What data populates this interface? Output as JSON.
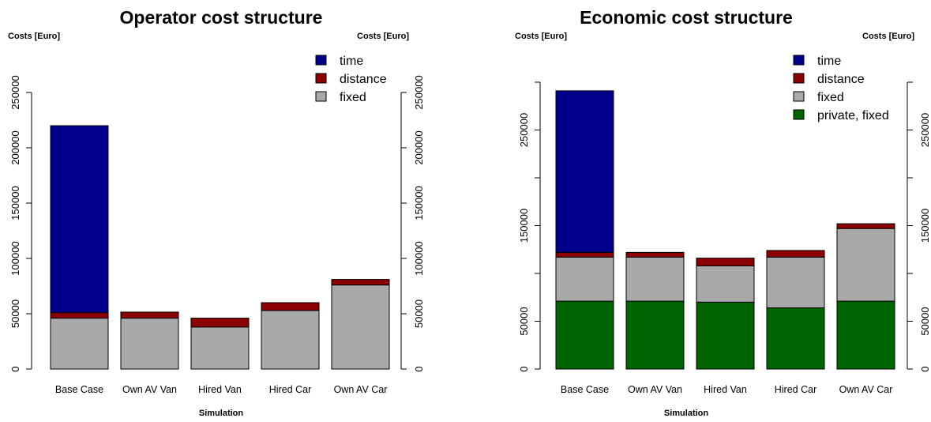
{
  "chart_data": [
    {
      "type": "bar",
      "stacked": true,
      "title": "Operator cost structure",
      "ylabel_left": "Costs [Euro]",
      "ylabel_right": "Costs [Euro]",
      "xlabel": "Simulation",
      "categories": [
        "Base Case",
        "Own AV Van",
        "Hired Van",
        "Hired Car",
        "Own AV Car"
      ],
      "ylim": [
        0,
        250000
      ],
      "yticks": [
        0,
        50000,
        100000,
        150000,
        200000,
        250000
      ],
      "legend_position": "top-right",
      "series": [
        {
          "name": "fixed",
          "color": "#a9a9a9",
          "values": [
            46000,
            46000,
            38000,
            53000,
            76000
          ]
        },
        {
          "name": "distance",
          "color": "#8b0000",
          "values": [
            5000,
            5500,
            8000,
            7000,
            5000
          ]
        },
        {
          "name": "time",
          "color": "#00008b",
          "values": [
            169000,
            0,
            0,
            0,
            0
          ]
        }
      ],
      "legend": [
        {
          "name": "time",
          "color": "#00008b"
        },
        {
          "name": "distance",
          "color": "#8b0000"
        },
        {
          "name": "fixed",
          "color": "#a9a9a9"
        }
      ]
    },
    {
      "type": "bar",
      "stacked": true,
      "title": "Economic cost structure",
      "ylabel_left": "Costs [Euro]",
      "ylabel_right": "Costs [Euro]",
      "xlabel": "Simulation",
      "categories": [
        "Base Case",
        "Own AV Van",
        "Hired Van",
        "Hired Car",
        "Own AV Car"
      ],
      "ylim": [
        0,
        300000
      ],
      "yticks": [
        0,
        50000,
        100000,
        150000,
        200000,
        250000,
        300000
      ],
      "ytick_labels_left": [
        "0",
        "50000",
        "",
        "150000",
        "",
        "250000",
        ""
      ],
      "ytick_labels_right": [
        "0",
        "50000",
        "",
        "150000",
        "",
        "250000",
        ""
      ],
      "legend_position": "top-right",
      "series": [
        {
          "name": "private, fixed",
          "color": "#006400",
          "values": [
            71000,
            71000,
            70000,
            64000,
            71000
          ]
        },
        {
          "name": "fixed",
          "color": "#a9a9a9",
          "values": [
            46000,
            46000,
            38000,
            53000,
            76000
          ]
        },
        {
          "name": "distance",
          "color": "#8b0000",
          "values": [
            5000,
            5000,
            8000,
            7000,
            5000
          ]
        },
        {
          "name": "time",
          "color": "#00008b",
          "values": [
            169000,
            0,
            0,
            0,
            0
          ]
        }
      ],
      "legend": [
        {
          "name": "time",
          "color": "#00008b"
        },
        {
          "name": "distance",
          "color": "#8b0000"
        },
        {
          "name": "fixed",
          "color": "#a9a9a9"
        },
        {
          "name": "private, fixed",
          "color": "#006400"
        }
      ]
    }
  ]
}
